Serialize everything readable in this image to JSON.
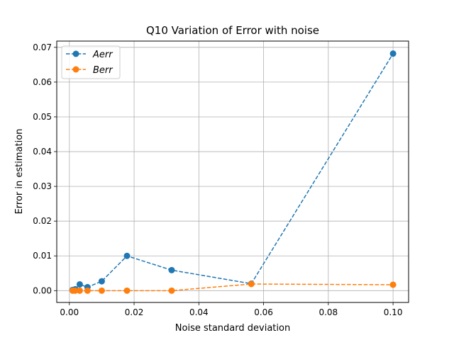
{
  "chart_data": {
    "type": "line",
    "title": "Q10 Variation of Error with noise",
    "xlabel": "Noise standard deviation",
    "ylabel": "Error in estimation",
    "xlim": [
      -0.0039,
      0.1048
    ],
    "ylim": [
      -0.0034,
      0.0718
    ],
    "grid": true,
    "legend_position": "top-left",
    "x_ticks": [
      0.0,
      0.02,
      0.04,
      0.06,
      0.08,
      0.1
    ],
    "x_tick_labels": [
      "0.00",
      "0.02",
      "0.04",
      "0.06",
      "0.08",
      "0.10"
    ],
    "y_ticks": [
      0.0,
      0.01,
      0.02,
      0.03,
      0.04,
      0.05,
      0.06,
      0.07
    ],
    "y_tick_labels": [
      "0.00",
      "0.01",
      "0.02",
      "0.03",
      "0.04",
      "0.05",
      "0.06",
      "0.07"
    ],
    "x": [
      0.001,
      0.0018,
      0.0032,
      0.0056,
      0.01,
      0.0178,
      0.0316,
      0.0562,
      0.1
    ],
    "series": [
      {
        "name": "Aerr",
        "color": "#1f77b4",
        "values": [
          0.0002,
          0.0004,
          0.0018,
          0.001,
          0.0027,
          0.01,
          0.0059,
          0.002,
          0.0682
        ]
      },
      {
        "name": "Berr",
        "color": "#ff7f0e",
        "values": [
          0.0,
          0.0,
          0.0,
          0.0,
          0.0,
          0.0,
          0.0,
          0.0019,
          0.0017
        ]
      }
    ]
  }
}
